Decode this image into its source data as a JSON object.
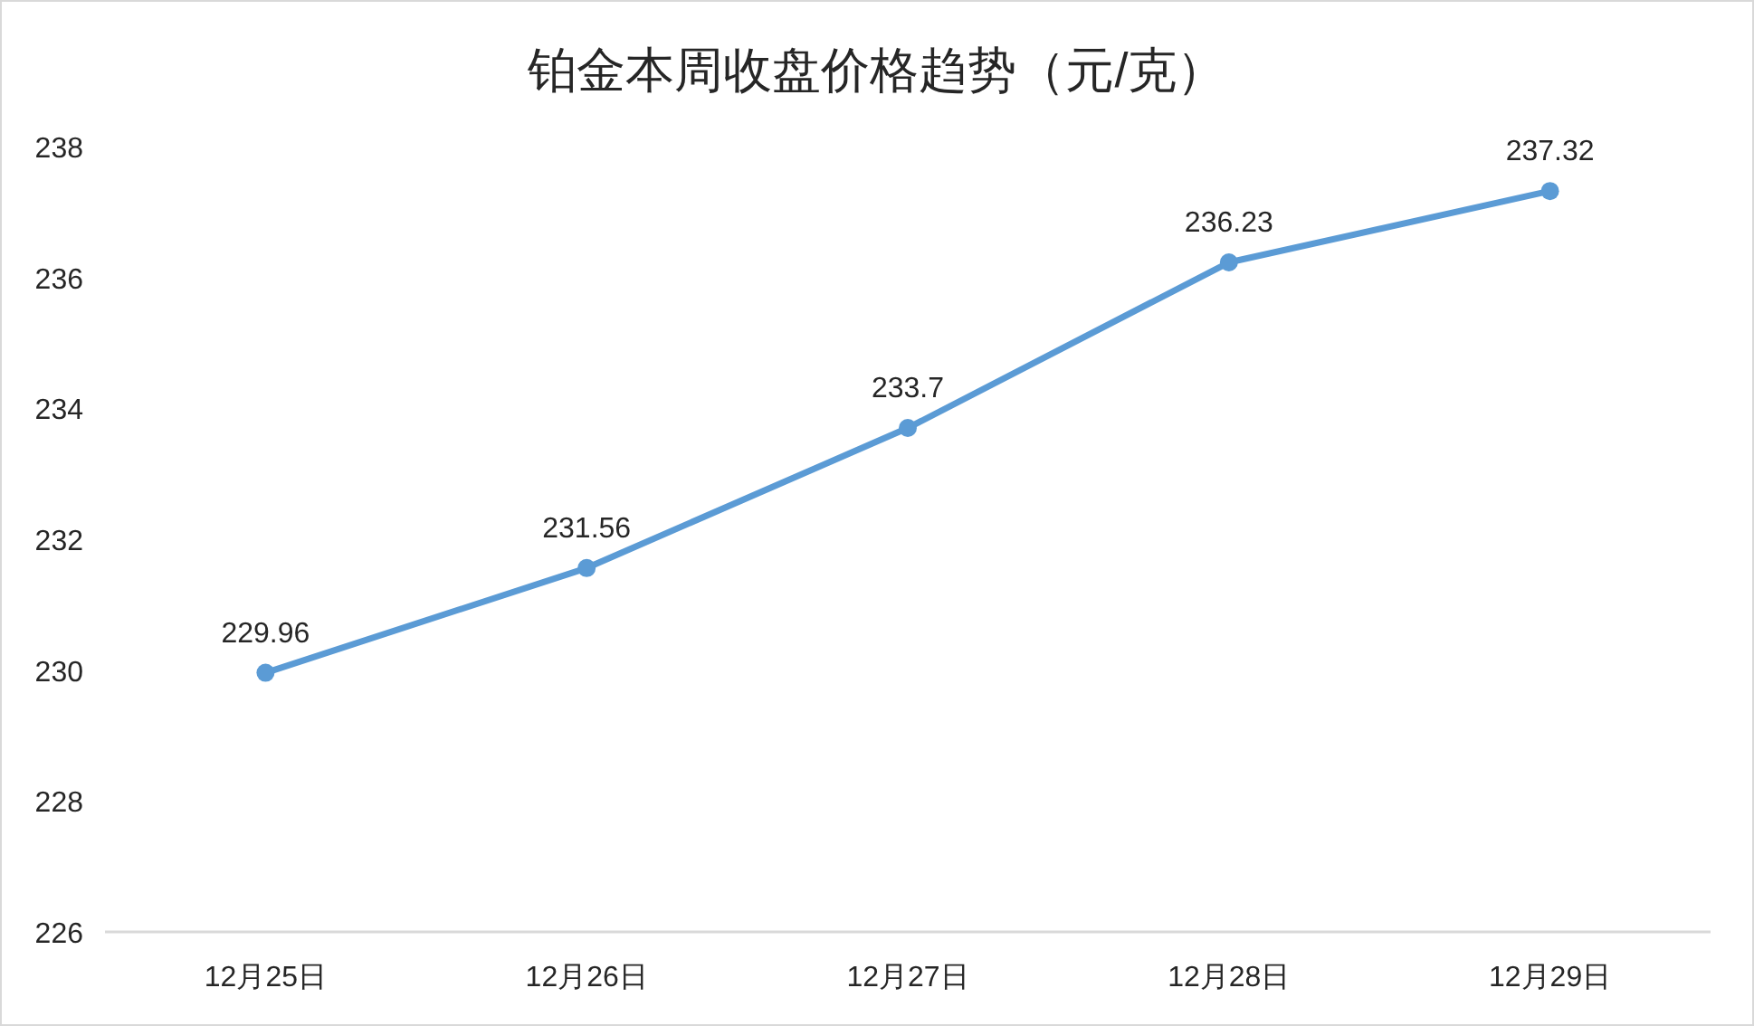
{
  "chart_data": {
    "type": "line",
    "title": "铂金本周收盘价格趋势（元/克）",
    "categories": [
      "12月25日",
      "12月26日",
      "12月27日",
      "12月28日",
      "12月29日"
    ],
    "series": [
      {
        "color": "#5b9bd5",
        "values": [
          229.96,
          231.56,
          233.7,
          236.23,
          237.32
        ]
      }
    ],
    "ylim": [
      226,
      238
    ],
    "yticks": [
      226,
      228,
      230,
      232,
      234,
      236,
      238
    ],
    "grid": false,
    "marker": "circle",
    "line_style": "solid",
    "data_labels": true
  }
}
